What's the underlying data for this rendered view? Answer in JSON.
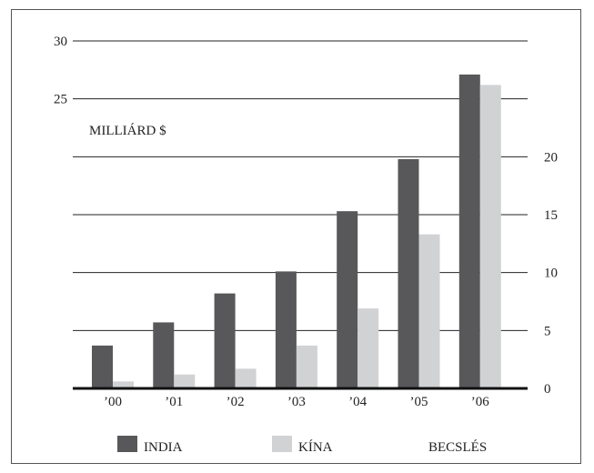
{
  "chart_data": {
    "type": "bar",
    "title": "",
    "unit_label": "MILLIÁRD $",
    "categories": [
      "’00",
      "’01",
      "’02",
      "’03",
      "’04",
      "’05",
      "’06"
    ],
    "series": [
      {
        "name": "INDIA",
        "color": "#58585a",
        "values": [
          3.7,
          5.7,
          8.2,
          10.1,
          15.3,
          19.8,
          27.1
        ]
      },
      {
        "name": "KÍNA",
        "color": "#d1d2d4",
        "values": [
          0.6,
          1.2,
          1.7,
          3.7,
          6.9,
          13.3,
          26.2
        ]
      }
    ],
    "left_ticks": [
      {
        "label": "30",
        "value": 30
      },
      {
        "label": "25",
        "value": 25
      },
      {
        "label": "",
        "value": 20
      },
      {
        "label": "",
        "value": 15
      },
      {
        "label": "",
        "value": 10
      },
      {
        "label": "",
        "value": 5
      }
    ],
    "right_ticks": [
      {
        "label": "20",
        "value": 20
      },
      {
        "label": "15",
        "value": 15
      },
      {
        "label": "10",
        "value": 10
      },
      {
        "label": "5",
        "value": 5
      },
      {
        "label": "0",
        "value": 0
      }
    ],
    "ylim": [
      0,
      30
    ],
    "grid": true,
    "legend": {
      "position": "bottom",
      "estimate_label": "BECSLÉS"
    }
  }
}
